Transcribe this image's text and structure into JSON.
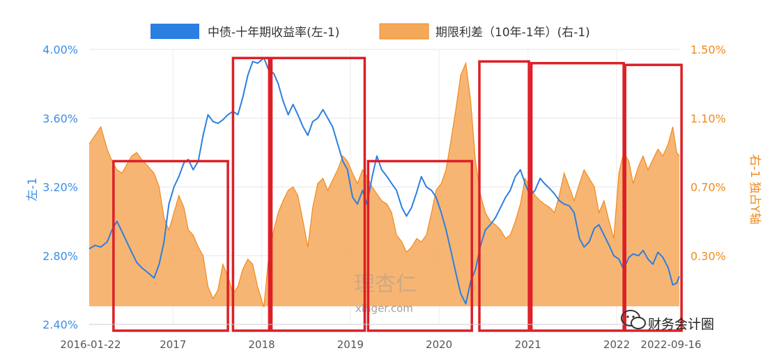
{
  "chart_data": {
    "type": "line",
    "legend_position": "top",
    "grid": true,
    "series": [
      {
        "name": "中债-十年期收益率(左-1)",
        "kind": "line",
        "axis": "left",
        "color": "#2a7fe0",
        "points": [
          [
            "2016-01-22",
            2.84
          ],
          [
            "2016-02-15",
            2.86
          ],
          [
            "2016-03-10",
            2.85
          ],
          [
            "2016-04-05",
            2.88
          ],
          [
            "2016-04-25",
            2.95
          ],
          [
            "2016-05-15",
            3.0
          ],
          [
            "2016-06-05",
            2.94
          ],
          [
            "2016-06-25",
            2.88
          ],
          [
            "2016-07-15",
            2.82
          ],
          [
            "2016-08-05",
            2.76
          ],
          [
            "2016-08-25",
            2.73
          ],
          [
            "2016-09-20",
            2.7
          ],
          [
            "2016-10-15",
            2.67
          ],
          [
            "2016-11-05",
            2.75
          ],
          [
            "2016-11-25",
            2.88
          ],
          [
            "2016-12-15",
            3.1
          ],
          [
            "2017-01-05",
            3.2
          ],
          [
            "2017-01-25",
            3.26
          ],
          [
            "2017-02-15",
            3.34
          ],
          [
            "2017-03-05",
            3.36
          ],
          [
            "2017-03-25",
            3.3
          ],
          [
            "2017-04-15",
            3.35
          ],
          [
            "2017-05-05",
            3.5
          ],
          [
            "2017-05-25",
            3.62
          ],
          [
            "2017-06-15",
            3.58
          ],
          [
            "2017-07-05",
            3.57
          ],
          [
            "2017-07-25",
            3.59
          ],
          [
            "2017-08-15",
            3.62
          ],
          [
            "2017-09-05",
            3.64
          ],
          [
            "2017-09-25",
            3.62
          ],
          [
            "2017-10-15",
            3.72
          ],
          [
            "2017-11-05",
            3.85
          ],
          [
            "2017-11-25",
            3.93
          ],
          [
            "2017-12-15",
            3.92
          ],
          [
            "2018-01-10",
            3.95
          ],
          [
            "2018-01-30",
            3.88
          ],
          [
            "2018-02-20",
            3.86
          ],
          [
            "2018-03-10",
            3.8
          ],
          [
            "2018-03-30",
            3.7
          ],
          [
            "2018-04-20",
            3.62
          ],
          [
            "2018-05-10",
            3.68
          ],
          [
            "2018-05-30",
            3.62
          ],
          [
            "2018-06-20",
            3.55
          ],
          [
            "2018-07-10",
            3.5
          ],
          [
            "2018-07-30",
            3.58
          ],
          [
            "2018-08-20",
            3.6
          ],
          [
            "2018-09-10",
            3.65
          ],
          [
            "2018-09-30",
            3.6
          ],
          [
            "2018-10-20",
            3.55
          ],
          [
            "2018-11-10",
            3.45
          ],
          [
            "2018-12-01",
            3.35
          ],
          [
            "2018-12-20",
            3.3
          ],
          [
            "2019-01-10",
            3.14
          ],
          [
            "2019-01-30",
            3.1
          ],
          [
            "2019-02-20",
            3.18
          ],
          [
            "2019-03-10",
            3.1
          ],
          [
            "2019-04-01",
            3.26
          ],
          [
            "2019-04-20",
            3.38
          ],
          [
            "2019-05-10",
            3.3
          ],
          [
            "2019-06-01",
            3.26
          ],
          [
            "2019-06-20",
            3.22
          ],
          [
            "2019-07-10",
            3.18
          ],
          [
            "2019-08-01",
            3.08
          ],
          [
            "2019-08-20",
            3.03
          ],
          [
            "2019-09-10",
            3.08
          ],
          [
            "2019-10-01",
            3.17
          ],
          [
            "2019-10-20",
            3.26
          ],
          [
            "2019-11-10",
            3.2
          ],
          [
            "2019-12-01",
            3.18
          ],
          [
            "2019-12-20",
            3.14
          ],
          [
            "2020-01-10",
            3.05
          ],
          [
            "2020-01-30",
            2.95
          ],
          [
            "2020-02-20",
            2.82
          ],
          [
            "2020-03-10",
            2.7
          ],
          [
            "2020-03-30",
            2.58
          ],
          [
            "2020-04-20",
            2.52
          ],
          [
            "2020-05-10",
            2.65
          ],
          [
            "2020-05-30",
            2.72
          ],
          [
            "2020-06-20",
            2.86
          ],
          [
            "2020-07-10",
            2.95
          ],
          [
            "2020-07-30",
            2.98
          ],
          [
            "2020-08-20",
            3.02
          ],
          [
            "2020-09-10",
            3.08
          ],
          [
            "2020-10-01",
            3.14
          ],
          [
            "2020-10-20",
            3.18
          ],
          [
            "2020-11-10",
            3.26
          ],
          [
            "2020-12-01",
            3.3
          ],
          [
            "2020-12-20",
            3.22
          ],
          [
            "2021-01-10",
            3.15
          ],
          [
            "2021-01-30",
            3.18
          ],
          [
            "2021-02-20",
            3.25
          ],
          [
            "2021-03-10",
            3.22
          ],
          [
            "2021-04-01",
            3.19
          ],
          [
            "2021-04-20",
            3.16
          ],
          [
            "2021-05-10",
            3.12
          ],
          [
            "2021-05-30",
            3.1
          ],
          [
            "2021-06-20",
            3.09
          ],
          [
            "2021-07-10",
            3.05
          ],
          [
            "2021-08-01",
            2.9
          ],
          [
            "2021-08-20",
            2.85
          ],
          [
            "2021-09-10",
            2.88
          ],
          [
            "2021-10-01",
            2.96
          ],
          [
            "2021-10-20",
            2.98
          ],
          [
            "2021-11-10",
            2.92
          ],
          [
            "2021-12-01",
            2.86
          ],
          [
            "2021-12-20",
            2.8
          ],
          [
            "2022-01-10",
            2.78
          ],
          [
            "2022-01-30",
            2.72
          ],
          [
            "2022-02-20",
            2.79
          ],
          [
            "2022-03-10",
            2.81
          ],
          [
            "2022-04-01",
            2.8
          ],
          [
            "2022-04-20",
            2.83
          ],
          [
            "2022-05-10",
            2.78
          ],
          [
            "2022-05-30",
            2.75
          ],
          [
            "2022-06-20",
            2.82
          ],
          [
            "2022-07-10",
            2.79
          ],
          [
            "2022-08-01",
            2.73
          ],
          [
            "2022-08-20",
            2.63
          ],
          [
            "2022-09-05",
            2.64
          ],
          [
            "2022-09-16",
            2.68
          ]
        ]
      },
      {
        "name": "期限利差（10年-1年）(右-1)",
        "kind": "area",
        "axis": "right",
        "color": "#f6a85a",
        "points": [
          [
            "2016-01-22",
            0.95
          ],
          [
            "2016-02-15",
            1.0
          ],
          [
            "2016-03-10",
            1.05
          ],
          [
            "2016-04-05",
            0.92
          ],
          [
            "2016-04-25",
            0.85
          ],
          [
            "2016-05-15",
            0.8
          ],
          [
            "2016-06-05",
            0.78
          ],
          [
            "2016-06-25",
            0.83
          ],
          [
            "2016-07-15",
            0.88
          ],
          [
            "2016-08-05",
            0.9
          ],
          [
            "2016-08-25",
            0.86
          ],
          [
            "2016-09-20",
            0.82
          ],
          [
            "2016-10-15",
            0.78
          ],
          [
            "2016-11-05",
            0.7
          ],
          [
            "2016-11-25",
            0.52
          ],
          [
            "2016-12-15",
            0.45
          ],
          [
            "2017-01-05",
            0.55
          ],
          [
            "2017-01-25",
            0.65
          ],
          [
            "2017-02-15",
            0.58
          ],
          [
            "2017-03-05",
            0.45
          ],
          [
            "2017-03-25",
            0.42
          ],
          [
            "2017-04-15",
            0.35
          ],
          [
            "2017-05-05",
            0.3
          ],
          [
            "2017-05-25",
            0.12
          ],
          [
            "2017-06-15",
            0.05
          ],
          [
            "2017-07-05",
            0.1
          ],
          [
            "2017-07-25",
            0.25
          ],
          [
            "2017-08-15",
            0.18
          ],
          [
            "2017-09-05",
            0.08
          ],
          [
            "2017-09-25",
            0.12
          ],
          [
            "2017-10-15",
            0.22
          ],
          [
            "2017-11-05",
            0.28
          ],
          [
            "2017-11-25",
            0.25
          ],
          [
            "2017-12-15",
            0.12
          ],
          [
            "2018-01-10",
            0.0
          ],
          [
            "2018-01-30",
            0.3
          ],
          [
            "2018-02-20",
            0.45
          ],
          [
            "2018-03-10",
            0.55
          ],
          [
            "2018-03-30",
            0.62
          ],
          [
            "2018-04-20",
            0.68
          ],
          [
            "2018-05-10",
            0.7
          ],
          [
            "2018-05-30",
            0.65
          ],
          [
            "2018-06-20",
            0.5
          ],
          [
            "2018-07-10",
            0.35
          ],
          [
            "2018-07-30",
            0.58
          ],
          [
            "2018-08-20",
            0.72
          ],
          [
            "2018-09-10",
            0.75
          ],
          [
            "2018-09-30",
            0.68
          ],
          [
            "2018-10-20",
            0.74
          ],
          [
            "2018-11-10",
            0.8
          ],
          [
            "2018-12-01",
            0.88
          ],
          [
            "2018-12-20",
            0.85
          ],
          [
            "2019-01-10",
            0.78
          ],
          [
            "2019-01-30",
            0.72
          ],
          [
            "2019-02-20",
            0.8
          ],
          [
            "2019-03-10",
            0.76
          ],
          [
            "2019-04-01",
            0.7
          ],
          [
            "2019-04-20",
            0.66
          ],
          [
            "2019-05-10",
            0.62
          ],
          [
            "2019-06-01",
            0.6
          ],
          [
            "2019-06-20",
            0.55
          ],
          [
            "2019-07-10",
            0.42
          ],
          [
            "2019-08-01",
            0.38
          ],
          [
            "2019-08-20",
            0.32
          ],
          [
            "2019-09-10",
            0.35
          ],
          [
            "2019-10-01",
            0.4
          ],
          [
            "2019-10-20",
            0.38
          ],
          [
            "2019-11-10",
            0.42
          ],
          [
            "2019-12-01",
            0.55
          ],
          [
            "2019-12-20",
            0.68
          ],
          [
            "2020-01-10",
            0.72
          ],
          [
            "2020-01-30",
            0.8
          ],
          [
            "2020-02-20",
            0.98
          ],
          [
            "2020-03-10",
            1.15
          ],
          [
            "2020-03-30",
            1.35
          ],
          [
            "2020-04-20",
            1.42
          ],
          [
            "2020-05-10",
            1.2
          ],
          [
            "2020-05-30",
            0.85
          ],
          [
            "2020-06-20",
            0.65
          ],
          [
            "2020-07-10",
            0.55
          ],
          [
            "2020-07-30",
            0.5
          ],
          [
            "2020-08-20",
            0.48
          ],
          [
            "2020-09-10",
            0.45
          ],
          [
            "2020-10-01",
            0.4
          ],
          [
            "2020-10-20",
            0.42
          ],
          [
            "2020-11-10",
            0.5
          ],
          [
            "2020-12-01",
            0.6
          ],
          [
            "2020-12-20",
            0.75
          ],
          [
            "2021-01-10",
            0.7
          ],
          [
            "2021-01-30",
            0.65
          ],
          [
            "2021-02-20",
            0.62
          ],
          [
            "2021-03-10",
            0.6
          ],
          [
            "2021-04-01",
            0.58
          ],
          [
            "2021-04-20",
            0.55
          ],
          [
            "2021-05-10",
            0.65
          ],
          [
            "2021-05-30",
            0.78
          ],
          [
            "2021-06-20",
            0.7
          ],
          [
            "2021-07-10",
            0.62
          ],
          [
            "2021-08-01",
            0.72
          ],
          [
            "2021-08-20",
            0.8
          ],
          [
            "2021-09-10",
            0.75
          ],
          [
            "2021-10-01",
            0.7
          ],
          [
            "2021-10-20",
            0.55
          ],
          [
            "2021-11-10",
            0.62
          ],
          [
            "2021-12-01",
            0.5
          ],
          [
            "2021-12-20",
            0.4
          ],
          [
            "2022-01-10",
            0.78
          ],
          [
            "2022-01-30",
            0.9
          ],
          [
            "2022-02-20",
            0.85
          ],
          [
            "2022-03-10",
            0.72
          ],
          [
            "2022-04-01",
            0.82
          ],
          [
            "2022-04-20",
            0.88
          ],
          [
            "2022-05-10",
            0.8
          ],
          [
            "2022-05-30",
            0.86
          ],
          [
            "2022-06-20",
            0.92
          ],
          [
            "2022-07-10",
            0.88
          ],
          [
            "2022-08-01",
            0.95
          ],
          [
            "2022-08-20",
            1.05
          ],
          [
            "2022-09-05",
            0.9
          ],
          [
            "2022-09-16",
            0.88
          ]
        ]
      }
    ],
    "x_range": [
      "2016-01-22",
      "2022-09-16"
    ],
    "x_tick_labels": [
      {
        "date": "2016-01-22",
        "label": "2016-01-22"
      },
      {
        "date": "2017-01-01",
        "label": "2017"
      },
      {
        "date": "2018-01-01",
        "label": "2018"
      },
      {
        "date": "2019-01-01",
        "label": "2019"
      },
      {
        "date": "2020-01-01",
        "label": "2020"
      },
      {
        "date": "2021-01-01",
        "label": "2021"
      },
      {
        "date": "2022-01-01",
        "label": "2022"
      },
      {
        "date": "2022-09-16",
        "label": "2022-09-16"
      }
    ],
    "y_left": {
      "label": "左-1",
      "range": [
        2.4,
        4.0
      ],
      "ticks": [
        2.4,
        2.8,
        3.2,
        3.6,
        4.0
      ],
      "tick_labels": [
        "2.40%",
        "2.80%",
        "3.20%",
        "3.60%",
        "4.00%"
      ],
      "color": "#3a8ee6"
    },
    "y_right": {
      "label": "右-1 独占Y轴",
      "range": [
        -0.1,
        1.5
      ],
      "ticks": [
        0.3,
        0.7,
        1.1,
        1.5
      ],
      "tick_labels": [
        "0.30%",
        "0.70%",
        "1.10%",
        "1.50%"
      ],
      "color": "#f08a1c"
    },
    "highlight_boxes": [
      {
        "start": "2016-05-01",
        "end": "2017-08-15",
        "y_top_left_axis": 3.35,
        "color": "#dd1f26"
      },
      {
        "start": "2017-09-05",
        "end": "2018-02-01",
        "y_top_left_axis": 3.95,
        "color": "#dd1f26"
      },
      {
        "start": "2018-02-10",
        "end": "2019-03-01",
        "y_top_left_axis": 3.95,
        "color": "#dd1f26"
      },
      {
        "start": "2019-03-15",
        "end": "2020-05-15",
        "y_top_left_axis": 3.35,
        "color": "#dd1f26"
      },
      {
        "start": "2020-06-15",
        "end": "2021-01-05",
        "y_top_left_axis": 3.93,
        "color": "#dd1f26"
      },
      {
        "start": "2021-01-15",
        "end": "2022-01-30",
        "y_top_left_axis": 3.92,
        "color": "#dd1f26"
      },
      {
        "start": "2022-02-05",
        "end": "2022-09-25",
        "y_top_left_axis": 3.91,
        "color": "#dd1f26"
      }
    ]
  },
  "watermark": {
    "main": "理杏仁",
    "url": "xinger.com"
  },
  "brand": {
    "text": "财务会计圈",
    "icon": "wechat-icon"
  }
}
